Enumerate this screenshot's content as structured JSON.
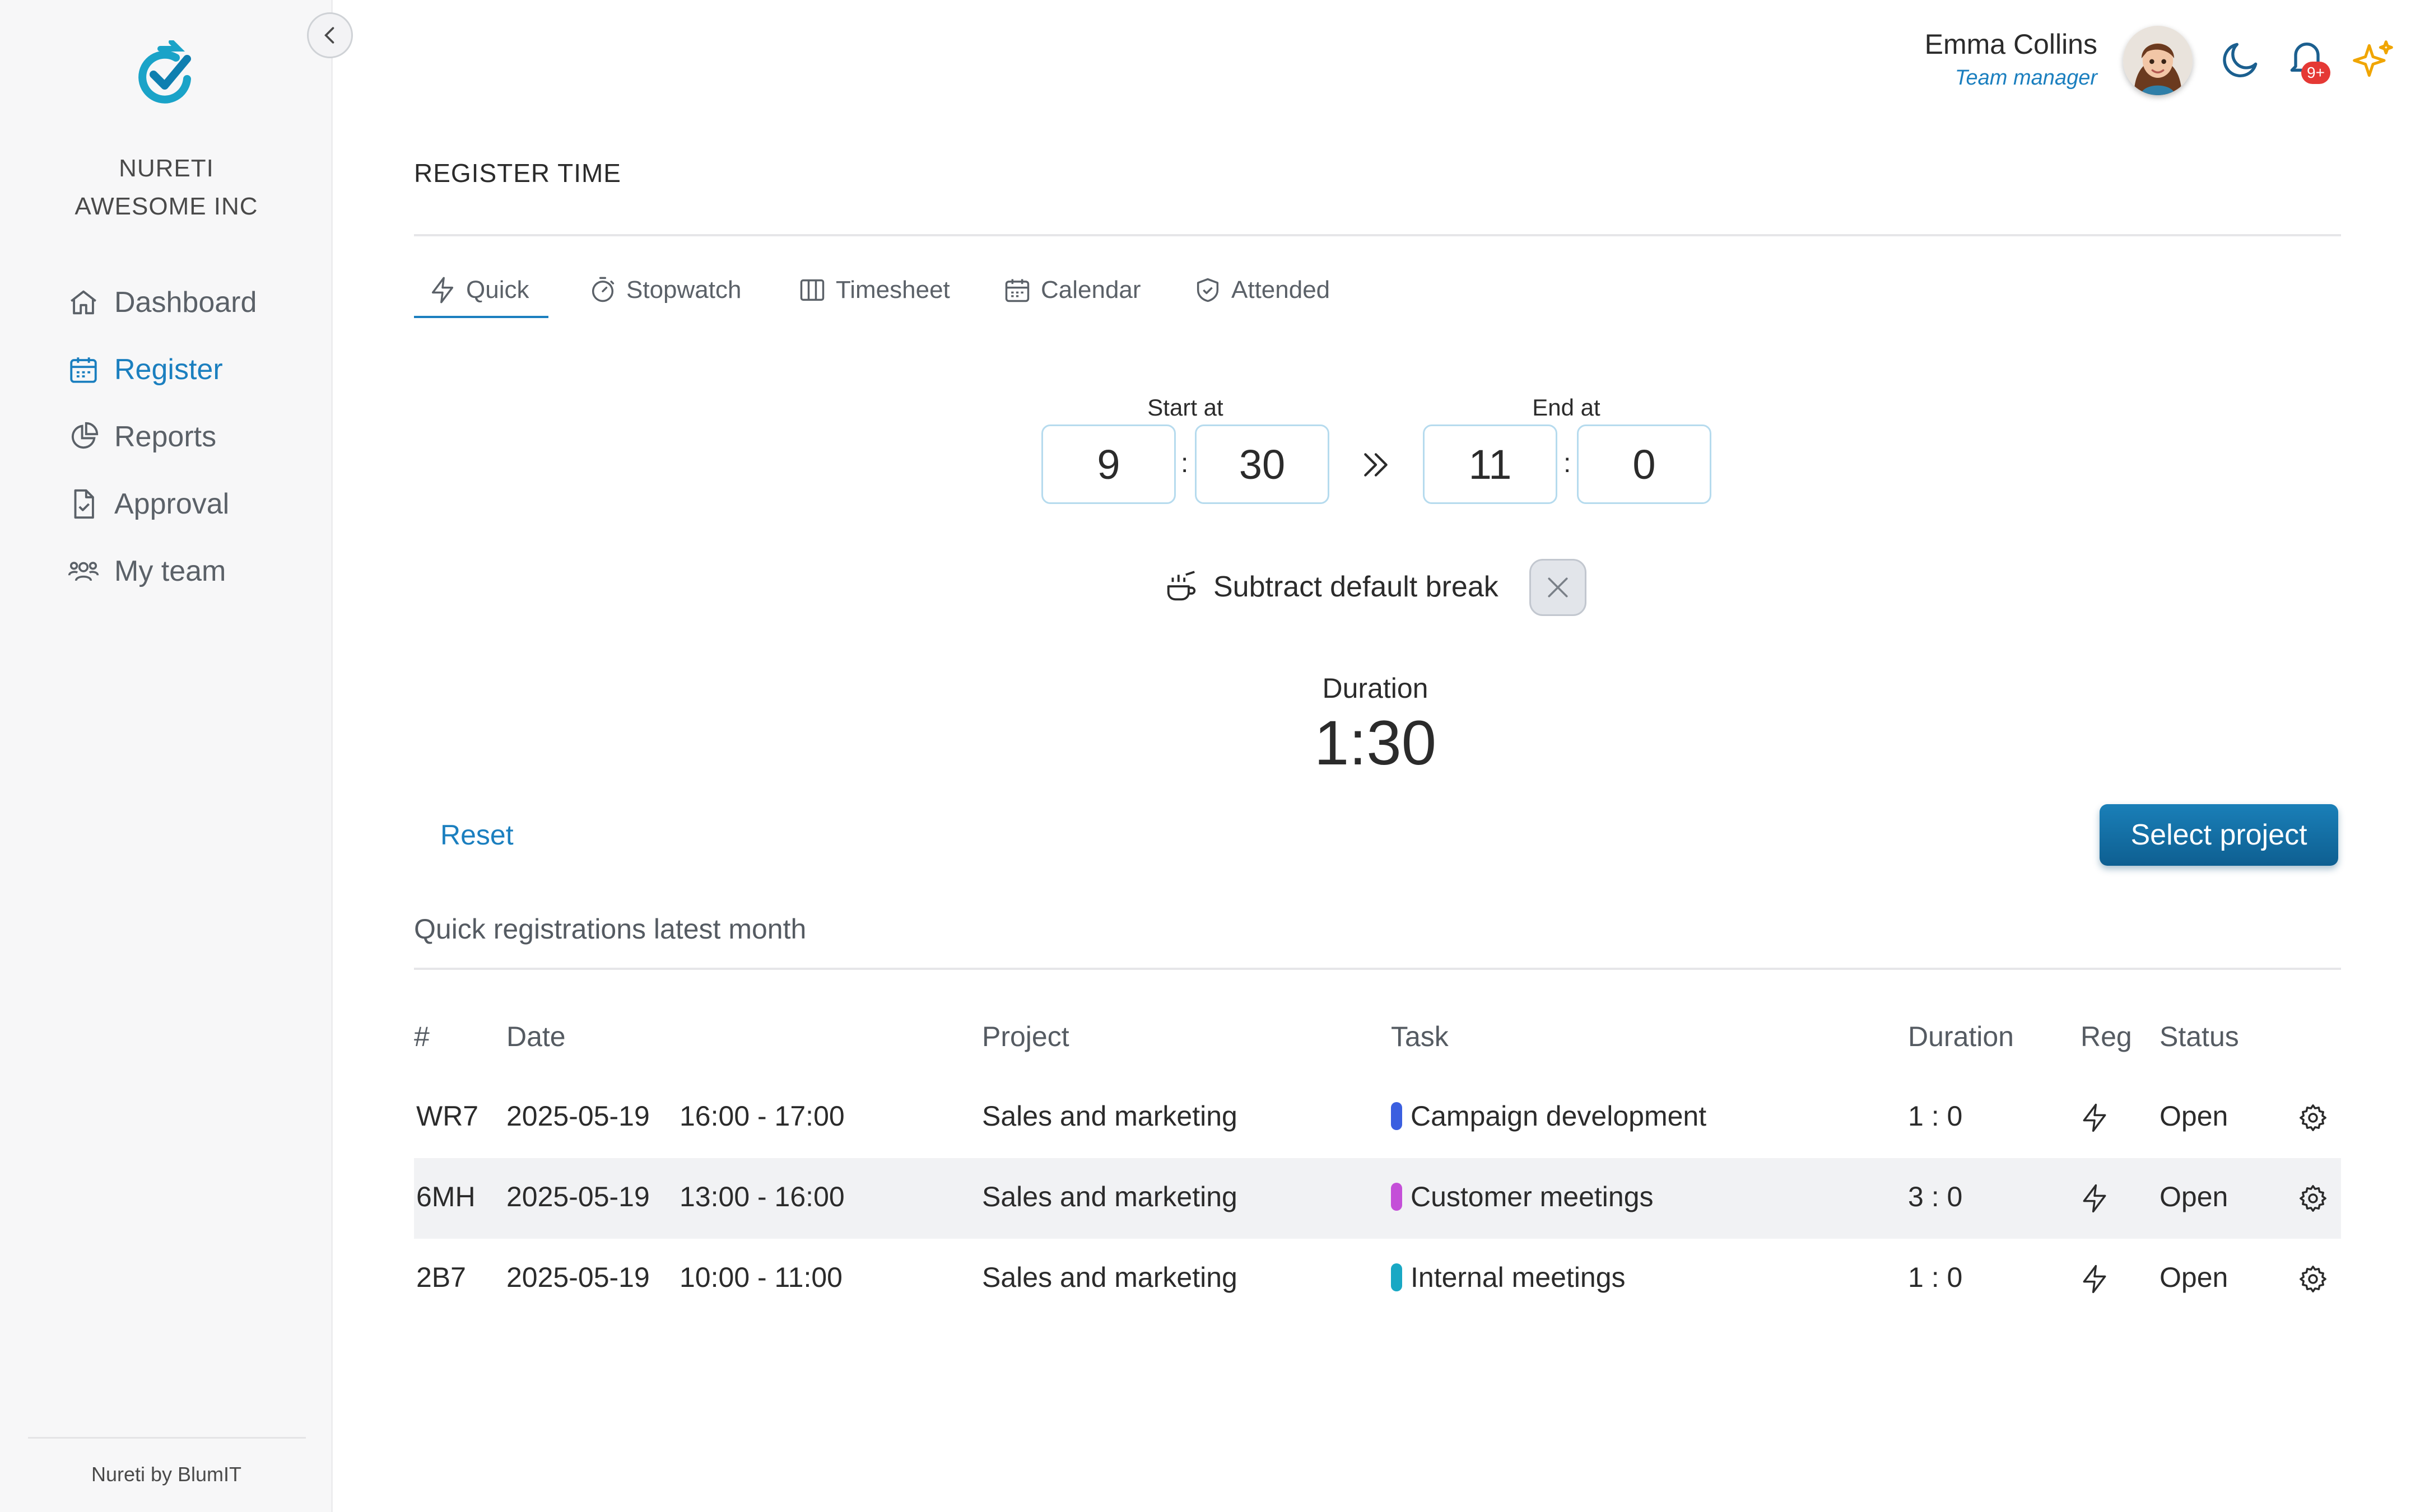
{
  "sidebar": {
    "org_name": "NURETI",
    "org_company": "AWESOME INC",
    "items": [
      {
        "label": "Dashboard",
        "icon": "home-icon"
      },
      {
        "label": "Register",
        "icon": "calendar-icon",
        "active": true
      },
      {
        "label": "Reports",
        "icon": "pie-chart-icon"
      },
      {
        "label": "Approval",
        "icon": "document-check-icon"
      },
      {
        "label": "My team",
        "icon": "team-icon"
      }
    ],
    "footer": "Nureti by BlumIT"
  },
  "header": {
    "user_name": "Emma Collins",
    "user_role": "Team manager",
    "notification_badge": "9+",
    "icons": [
      "moon-icon",
      "bell-icon",
      "sparkles-icon"
    ]
  },
  "page": {
    "title": "REGISTER TIME",
    "tabs": [
      {
        "label": "Quick",
        "icon": "bolt-icon",
        "active": true
      },
      {
        "label": "Stopwatch",
        "icon": "stopwatch-icon"
      },
      {
        "label": "Timesheet",
        "icon": "columns-icon"
      },
      {
        "label": "Calendar",
        "icon": "calendar-icon"
      },
      {
        "label": "Attended",
        "icon": "shield-check-icon"
      }
    ]
  },
  "quick": {
    "start_label": "Start at",
    "end_label": "End at",
    "start_hour": "9",
    "start_minute": "30",
    "end_hour": "11",
    "end_minute": "0",
    "separator": ":",
    "break_label": "Subtract default break",
    "duration_label": "Duration",
    "duration_value": "1:30",
    "reset_label": "Reset",
    "select_project_label": "Select project"
  },
  "registrations": {
    "title": "Quick registrations latest month",
    "columns": [
      "#",
      "Date",
      "Project",
      "Task",
      "Duration",
      "Reg",
      "Status"
    ],
    "rows": [
      {
        "id": "WR7",
        "date": "2025-05-19",
        "time": "16:00 - 17:00",
        "project": "Sales and marketing",
        "task": "Campaign development",
        "task_color": "#3b5fe0",
        "duration": "1 : 0",
        "status": "Open"
      },
      {
        "id": "6MH",
        "date": "2025-05-19",
        "time": "13:00 - 16:00",
        "project": "Sales and marketing",
        "task": "Customer meetings",
        "task_color": "#c44fd8",
        "duration": "3 : 0",
        "status": "Open"
      },
      {
        "id": "2B7",
        "date": "2025-05-19",
        "time": "10:00 - 11:00",
        "project": "Sales and marketing",
        "task": "Internal meetings",
        "task_color": "#19a8c4",
        "duration": "1 : 0",
        "status": "Open"
      }
    ]
  }
}
